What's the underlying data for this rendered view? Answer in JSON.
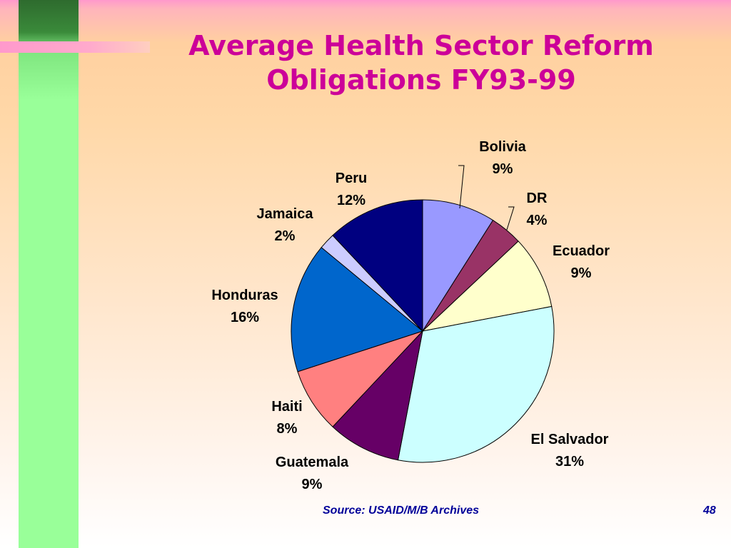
{
  "slide": {
    "title_line1": "Average Health Sector Reform",
    "title_line2": "Obligations FY93-99",
    "source": "Source:  USAID/M/B Archives",
    "page_number": "48"
  },
  "chart_data": {
    "type": "pie",
    "title": "Average Health Sector Reform Obligations FY93-99",
    "slices": [
      {
        "name": "Bolivia",
        "value": 9,
        "label": "9%",
        "color": "#9999ff"
      },
      {
        "name": "DR",
        "value": 4,
        "label": "4%",
        "color": "#993366"
      },
      {
        "name": "Ecuador",
        "value": 9,
        "label": "9%",
        "color": "#ffffcc"
      },
      {
        "name": "El Salvador",
        "value": 31,
        "label": "31%",
        "color": "#ccffff"
      },
      {
        "name": "Guatemala",
        "value": 9,
        "label": "9%",
        "color": "#660066"
      },
      {
        "name": "Haiti",
        "value": 8,
        "label": "8%",
        "color": "#ff8080"
      },
      {
        "name": "Honduras",
        "value": 16,
        "label": "16%",
        "color": "#0066cc"
      },
      {
        "name": "Jamaica",
        "value": 2,
        "label": "2%",
        "color": "#ccccff"
      },
      {
        "name": "Peru",
        "value": 12,
        "label": "12%",
        "color": "#000080"
      }
    ],
    "start_angle": "12 o'clock",
    "direction": "clockwise",
    "legend": "none"
  }
}
